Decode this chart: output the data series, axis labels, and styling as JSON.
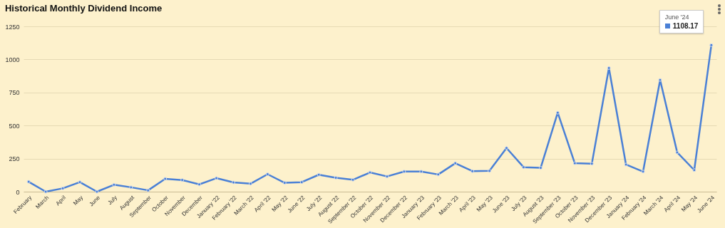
{
  "chart_data": {
    "type": "line",
    "title": "Historical Monthly Dividend Income",
    "categories": [
      "February",
      "March",
      "April",
      "May",
      "June",
      "July",
      "August",
      "September",
      "October",
      "November",
      "December",
      "January '22",
      "February '22",
      "March '22",
      "April '22",
      "May '22",
      "June '22",
      "July '22",
      "August '22",
      "September '22",
      "October '22",
      "November '22",
      "December '22",
      "January '23",
      "February '23",
      "March '23",
      "April '23",
      "May '23",
      "June '23",
      "July '23",
      "August '23",
      "September '23",
      "October '23",
      "November '23",
      "December '23",
      "January '24",
      "February '24",
      "March '24",
      "April '24",
      "May '24",
      "June '24"
    ],
    "series": [
      {
        "color": "#4a80d6",
        "values": [
          75,
          0,
          25,
          72,
          0,
          52,
          33,
          10,
          97,
          88,
          55,
          102,
          70,
          60,
          132,
          67,
          72,
          128,
          105,
          90,
          145,
          115,
          152,
          152,
          130,
          215,
          155,
          157,
          330,
          185,
          180,
          597,
          215,
          212,
          935,
          205,
          152,
          845,
          297,
          163,
          1108.17
        ],
        "value_labels": [
          null,
          null,
          null,
          null,
          null,
          null,
          null,
          null,
          null,
          null,
          null,
          null,
          null,
          null,
          null,
          null,
          null,
          null,
          null,
          null,
          null,
          null,
          null,
          null,
          null,
          null,
          null,
          null,
          null,
          null,
          null,
          null,
          null,
          null,
          null,
          null,
          null,
          null,
          null,
          null,
          "1108.17"
        ]
      }
    ],
    "annotations": [
      "June '24"
    ],
    "ylim": [
      0,
      1250
    ],
    "yticks": [
      0,
      250,
      500,
      750,
      1000,
      1250
    ],
    "grid": "y",
    "marker": "circle",
    "line_style": "solid"
  }
}
